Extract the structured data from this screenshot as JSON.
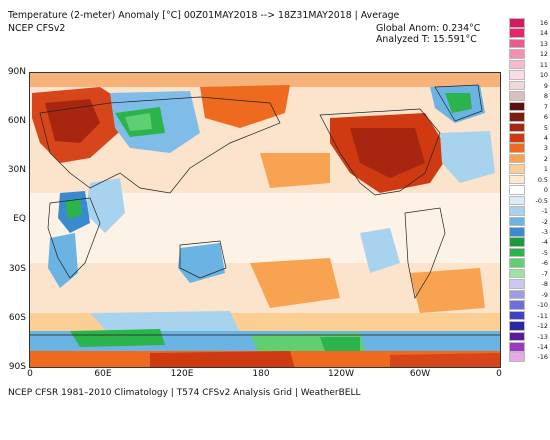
{
  "header": {
    "title": "Temperature (2-meter) Anomaly   [°C] 00Z01MAY2018 --> 18Z31MAY2018 | Average",
    "source": "NCEP CFSv2",
    "global_anom": "Global Anom: 0.234°C",
    "analyzed_t": "Analyzed T: 15.591°C"
  },
  "axes": {
    "lat_labels": [
      "90N",
      "60N",
      "30N",
      "EQ",
      "30S",
      "60S",
      "90S"
    ],
    "lon_labels": [
      "0",
      "60E",
      "120E",
      "180",
      "120W",
      "60W",
      "0"
    ]
  },
  "legend": {
    "labels": [
      "16",
      "14",
      "13",
      "12",
      "11",
      "10",
      "9",
      "8",
      "7",
      "6",
      "5",
      "4",
      "3",
      "2",
      "1",
      "0.5",
      "0",
      "-0.5",
      "-1",
      "-2",
      "-3",
      "-4",
      "-5",
      "-6",
      "-7",
      "-8",
      "-9",
      "-10",
      "-11",
      "-12",
      "-13",
      "-14",
      "-16"
    ],
    "colors": [
      "#d11a5f",
      "#e3266d",
      "#ec5a8f",
      "#f28fb2",
      "#f6b9cf",
      "#fadbe6",
      "#ecd9d9",
      "#d9bfbf",
      "#5c1010",
      "#7f1a0f",
      "#a8260f",
      "#cf3a10",
      "#ee6a1e",
      "#f7a352",
      "#fbcf94",
      "#fde9cd",
      "#ffffff",
      "#d9ecf7",
      "#a7d3ef",
      "#6bb3e3",
      "#3a8ad0",
      "#1d9a3d",
      "#2bb34c",
      "#5fcf72",
      "#9de3a6",
      "#c9c9f0",
      "#9d9de6",
      "#6e6edb",
      "#4040c8",
      "#2a2aa0",
      "#5a1a9a",
      "#9a3ac0",
      "#e6a8e6"
    ]
  },
  "footer": "NCEP CFSR 1981–2010 Climatology | T574 CFSv2 Analysis Grid | WeatherBELL"
}
